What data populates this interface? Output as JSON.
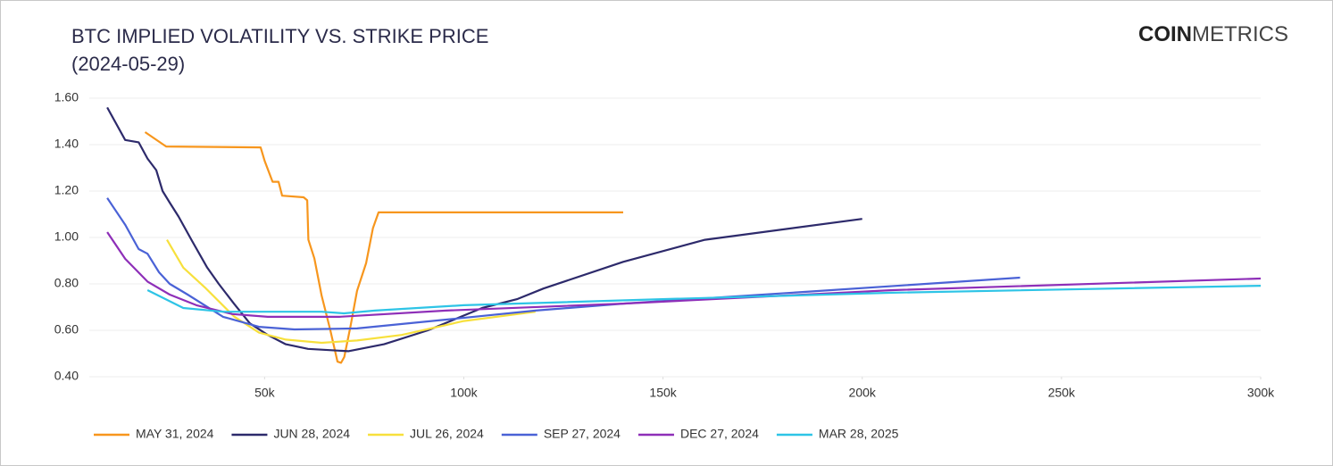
{
  "chart_data": {
    "type": "line",
    "title": "BTC IMPLIED VOLATILITY VS. STRIKE PRICE",
    "subtitle": "(2024-05-29)",
    "logo": {
      "bold": "COIN",
      "light": "METRICS"
    },
    "xlim": [
      6000,
      300000
    ],
    "ylim": [
      0.4,
      1.6
    ],
    "xticks": [
      {
        "value": 50000,
        "label": "50k"
      },
      {
        "value": 100000,
        "label": "100k"
      },
      {
        "value": 150000,
        "label": "150k"
      },
      {
        "value": 200000,
        "label": "200k"
      },
      {
        "value": 250000,
        "label": "250k"
      },
      {
        "value": 300000,
        "label": "300k"
      }
    ],
    "yticks": [
      {
        "value": 0.4,
        "label": "0.40"
      },
      {
        "value": 0.6,
        "label": "0.60"
      },
      {
        "value": 0.8,
        "label": "0.80"
      },
      {
        "value": 1.0,
        "label": "1.00"
      },
      {
        "value": 1.2,
        "label": "1.20"
      },
      {
        "value": 1.4,
        "label": "1.40"
      },
      {
        "value": 1.6,
        "label": "1.60"
      }
    ],
    "grid": true,
    "legend": "bottom",
    "series": [
      {
        "name": "MAY 31, 2024",
        "color": "#f7961d",
        "x": [
          20000,
          25300,
          49000,
          50000,
          52000,
          53500,
          54400,
          59800,
          60700,
          61000,
          62500,
          64300,
          66500,
          68300,
          69200,
          70000,
          71600,
          73200,
          75500,
          77200,
          78600,
          140000
        ],
        "values": [
          1.454,
          1.392,
          1.388,
          1.33,
          1.24,
          1.24,
          1.18,
          1.173,
          1.16,
          0.99,
          0.91,
          0.75,
          0.6,
          0.465,
          0.46,
          0.485,
          0.62,
          0.77,
          0.89,
          1.04,
          1.108,
          1.108
        ]
      },
      {
        "name": "JUN 28, 2024",
        "color": "#2d2a6b",
        "x": [
          10500,
          15000,
          18400,
          20600,
          22800,
          24400,
          26200,
          28400,
          31800,
          35600,
          38500,
          42300,
          46300,
          50800,
          55300,
          60900,
          71000,
          80000,
          91000,
          104600,
          113500,
          120000,
          140000,
          160500,
          200000
        ],
        "values": [
          1.56,
          1.42,
          1.41,
          1.34,
          1.29,
          1.2,
          1.15,
          1.09,
          0.985,
          0.87,
          0.8,
          0.715,
          0.63,
          0.58,
          0.54,
          0.52,
          0.51,
          0.54,
          0.6,
          0.696,
          0.735,
          0.78,
          0.895,
          0.99,
          1.08
        ]
      },
      {
        "name": "JUL 26, 2024",
        "color": "#f7e03c",
        "x": [
          25500,
          29600,
          35000,
          42300,
          48600,
          55300,
          64300,
          73200,
          84400,
          100000,
          118000
        ],
        "values": [
          0.99,
          0.87,
          0.785,
          0.66,
          0.59,
          0.56,
          0.546,
          0.556,
          0.58,
          0.64,
          0.68
        ]
      },
      {
        "name": "SEP 27, 2024",
        "color": "#4a62d6",
        "x": [
          10500,
          15000,
          18400,
          20600,
          23500,
          26200,
          30700,
          39600,
          48600,
          57500,
          73200,
          95600,
          118000,
          140000,
          185000,
          239600
        ],
        "values": [
          1.17,
          1.055,
          0.95,
          0.93,
          0.85,
          0.8,
          0.754,
          0.658,
          0.615,
          0.604,
          0.608,
          0.646,
          0.685,
          0.715,
          0.765,
          0.827
        ]
      },
      {
        "name": "DEC 27, 2024",
        "color": "#8e2fb8",
        "x": [
          10500,
          15000,
          20600,
          26200,
          32900,
          41900,
          50800,
          68700,
          95600,
          140000,
          207600,
          300000
        ],
        "values": [
          1.023,
          0.908,
          0.81,
          0.754,
          0.708,
          0.67,
          0.658,
          0.658,
          0.685,
          0.715,
          0.773,
          0.823
        ]
      },
      {
        "name": "MAR 28, 2025",
        "color": "#2ec4e6",
        "x": [
          20600,
          29600,
          39600,
          64300,
          69900,
          77700,
          100000,
          151600,
          207600,
          300000
        ],
        "values": [
          0.773,
          0.696,
          0.68,
          0.68,
          0.673,
          0.685,
          0.708,
          0.735,
          0.762,
          0.792
        ]
      }
    ]
  }
}
